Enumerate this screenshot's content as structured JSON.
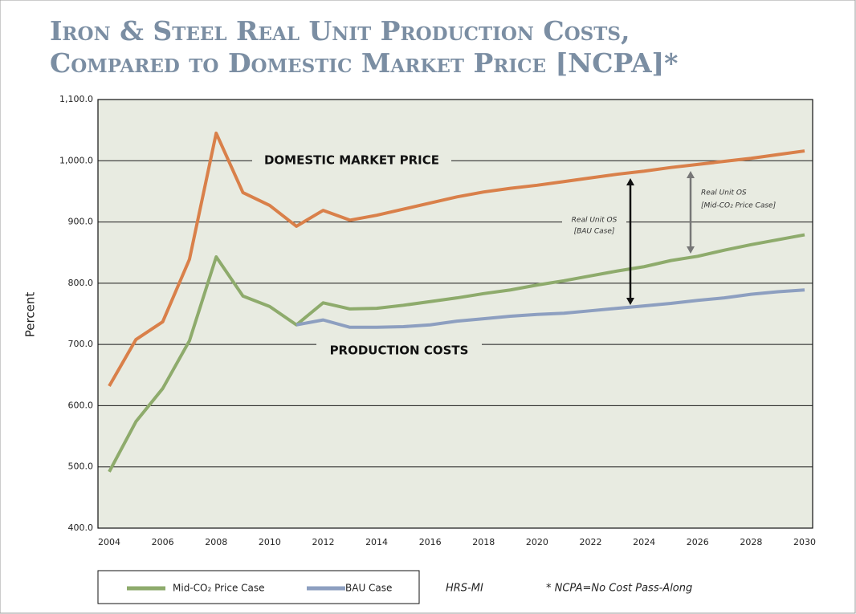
{
  "chart_data": {
    "type": "line",
    "title_lines": [
      "Iron & Steel Real Unit Production Costs,",
      "Compared to Domestic Market Price [NCPA]*"
    ],
    "y_label": "Percent",
    "x": [
      2004,
      2005,
      2006,
      2007,
      2008,
      2009,
      2010,
      2011,
      2012,
      2013,
      2014,
      2015,
      2016,
      2017,
      2018,
      2019,
      2020,
      2021,
      2022,
      2023,
      2024,
      2025,
      2026,
      2027,
      2028,
      2029,
      2030
    ],
    "xlim": [
      2004,
      2030
    ],
    "xticks": [
      2004,
      2006,
      2008,
      2010,
      2012,
      2014,
      2016,
      2018,
      2020,
      2022,
      2024,
      2026,
      2028,
      2030
    ],
    "ylim": [
      400,
      1100
    ],
    "yticks": [
      {
        "value": 400,
        "label": "400.0"
      },
      {
        "value": 500,
        "label": "500.0"
      },
      {
        "value": 600,
        "label": "600.0"
      },
      {
        "value": 700,
        "label": "700.0"
      },
      {
        "value": 800,
        "label": "800.0"
      },
      {
        "value": 900,
        "label": "900.0"
      },
      {
        "value": 1000,
        "label": "1,000.0"
      },
      {
        "value": 1100,
        "label": "1,100.0"
      }
    ],
    "grid": true,
    "series": [
      {
        "name": "DOMESTIC MARKET PRICE",
        "color": "#d9804a",
        "values": [
          632,
          708,
          737,
          839,
          1045,
          948,
          927,
          893,
          919,
          903,
          911,
          921,
          931,
          941,
          949,
          955,
          960,
          966,
          972,
          978,
          983,
          989,
          994,
          999,
          1004,
          1010,
          1016
        ]
      },
      {
        "name": "Mid-CO₂ Price Case",
        "color": "#8eab6c",
        "values": [
          492,
          574,
          628,
          706,
          843,
          779,
          762,
          732,
          768,
          758,
          759,
          764,
          770,
          776,
          783,
          789,
          797,
          804,
          812,
          820,
          827,
          837,
          844,
          854,
          863,
          871,
          879
        ]
      },
      {
        "name": "BAU Case",
        "color": "#8d9fc0",
        "values": [
          null,
          null,
          null,
          null,
          null,
          null,
          null,
          732,
          740,
          728,
          728,
          729,
          732,
          738,
          742,
          746,
          749,
          751,
          755,
          759,
          763,
          767,
          772,
          776,
          782,
          786,
          789
        ]
      }
    ],
    "annotations": [
      {
        "lines": [
          "PRODUCTION COSTS"
        ]
      },
      {
        "lines": [
          "Real Unit OS",
          "[BAU Case]"
        ]
      },
      {
        "lines": [
          "Real Unit OS",
          "[Mid-CO₂ Price Case]"
        ]
      }
    ],
    "footnotes": [
      "HRS-MI",
      "* NCPA=No Cost Pass-Along"
    ]
  }
}
